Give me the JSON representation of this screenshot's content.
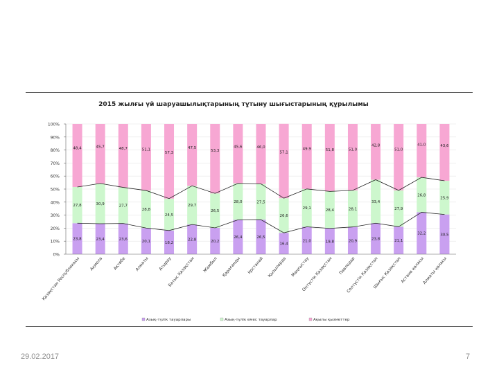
{
  "slide": {
    "date": "29.02.2017",
    "page_number": "7"
  },
  "chart_data": {
    "type": "bar",
    "stacked": "percent",
    "title": "2015 жылғы үй шаруашылықтарының тұтыну шығыстарының құрылымы",
    "xlabel": "",
    "ylabel": "",
    "ylim": [
      0,
      100
    ],
    "yticks": [
      "0%",
      "10%",
      "20%",
      "30%",
      "40%",
      "50%",
      "60%",
      "70%",
      "80%",
      "90%",
      "100%"
    ],
    "categories": [
      "Қазақстан Республикасы",
      "Ақмола",
      "Ақтөбе",
      "Алматы",
      "Атырау",
      "Батыс Қазақстан",
      "Жамбыл",
      "Қарағанды",
      "Қостанай",
      "Қызылорда",
      "Маңғыстау",
      "Оңтүстік Қазақстан",
      "Павлодар",
      "Солтүстік Қазақстан",
      "Шығыс Қазақстан",
      "Астана қаласы",
      "Алматы қаласы"
    ],
    "series": [
      {
        "name": "Азық-түлік тауарлары",
        "color": "#c9a0f0",
        "values": [
          23.8,
          23.4,
          23.6,
          20.1,
          18.2,
          22.8,
          20.2,
          26.4,
          26.5,
          16.4,
          21.0,
          19.8,
          20.9,
          23.8,
          21.1,
          32.2,
          30.5
        ],
        "labels": [
          "23,8",
          "23,4",
          "23,6",
          "20,1",
          "18,2",
          "22,8",
          "20,2",
          "26,4",
          "26,5",
          "16,4",
          "21,0",
          "19,8",
          "20,9",
          "23,8",
          "21,1",
          "32,2",
          "30,5"
        ]
      },
      {
        "name": "Азық-түлік емес тауарлар",
        "color": "#cdf7cd",
        "values": [
          27.8,
          30.9,
          27.7,
          28.8,
          24.5,
          29.7,
          26.5,
          28.0,
          27.5,
          26.6,
          29.1,
          28.4,
          28.1,
          33.4,
          27.9,
          26.8,
          25.9
        ],
        "labels": [
          "27,8",
          "30,9",
          "27,7",
          "28,8",
          "24,5",
          "29,7",
          "26,5",
          "28,0",
          "27,5",
          "26,6",
          "29,1",
          "28,4",
          "28,1",
          "33,4",
          "27,9",
          "26,8",
          "25,9"
        ]
      },
      {
        "name": "Ақылы қызметтер",
        "color": "#f7a7d3",
        "values": [
          48.4,
          45.7,
          48.7,
          51.1,
          57.3,
          47.5,
          53.3,
          45.6,
          46.0,
          57.1,
          49.9,
          51.8,
          51.0,
          42.8,
          51.0,
          41.0,
          43.6
        ],
        "labels": [
          "48,4",
          "45,7",
          "48,7",
          "51,1",
          "57,3",
          "47,5",
          "53,3",
          "45,6",
          "46,0",
          "57,1",
          "49,9",
          "51,8",
          "51,0",
          "42,8",
          "51,0",
          "41,0",
          "43,6"
        ]
      }
    ],
    "legend": "bottom"
  }
}
